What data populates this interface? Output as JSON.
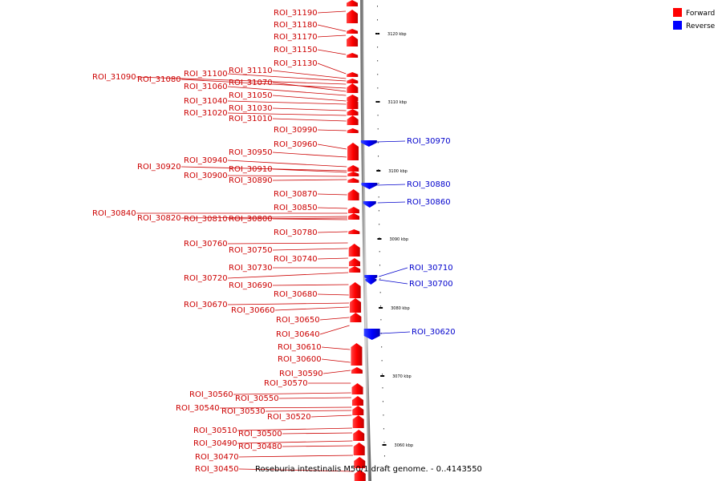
{
  "caption": "Roseburia intestinalis M50/1 draft genome. - 0..4143550",
  "legend": [
    {
      "label": "Forward",
      "color": "#ff0000"
    },
    {
      "label": "Reverse",
      "color": "#0000ff"
    }
  ],
  "kbp_ticks": [
    "3120 kbp",
    "3110 kbp",
    "3100 kbp",
    "3090 kbp",
    "3080 kbp",
    "3070 kbp",
    "3060 kbp"
  ],
  "labels": {
    "roi_31190": "ROI_31190",
    "roi_31180": "ROI_31180",
    "roi_31170": "ROI_31170",
    "roi_31150": "ROI_31150",
    "roi_31130": "ROI_31130",
    "roi_31110": "ROI_31110",
    "roi_31100": "ROI_31100",
    "roi_31090": "ROI_31090",
    "roi_31080": "ROI_31080",
    "roi_31070": "ROI_31070",
    "roi_31060": "ROI_31060",
    "roi_31050": "ROI_31050",
    "roi_31040": "ROI_31040",
    "roi_31030": "ROI_31030",
    "roi_31020": "ROI_31020",
    "roi_31010": "ROI_31010",
    "roi_30990": "ROI_30990",
    "roi_30970": "ROI_30970",
    "roi_30960": "ROI_30960",
    "roi_30950": "ROI_30950",
    "roi_30940": "ROI_30940",
    "roi_30920": "ROI_30920",
    "roi_30910": "ROI_30910",
    "roi_30900": "ROI_30900",
    "roi_30890": "ROI_30890",
    "roi_30880": "ROI_30880",
    "roi_30870": "ROI_30870",
    "roi_30860": "ROI_30860",
    "roi_30850": "ROI_30850",
    "roi_30840": "ROI_30840",
    "roi_30820": "ROI_30820",
    "roi_30810": "ROI_30810",
    "roi_30800": "ROI_30800",
    "roi_30780": "ROI_30780",
    "roi_30760": "ROI_30760",
    "roi_30750": "ROI_30750",
    "roi_30740": "ROI_30740",
    "roi_30730": "ROI_30730",
    "roi_30720": "ROI_30720",
    "roi_30710": "ROI_30710",
    "roi_30700": "ROI_30700",
    "roi_30690": "ROI_30690",
    "roi_30680": "ROI_30680",
    "roi_30670": "ROI_30670",
    "roi_30660": "ROI_30660",
    "roi_30650": "ROI_30650",
    "roi_30640": "ROI_30640",
    "roi_30620": "ROI_30620",
    "roi_30610": "ROI_30610",
    "roi_30600": "ROI_30600",
    "roi_30590": "ROI_30590",
    "roi_30570": "ROI_30570",
    "roi_30560": "ROI_30560",
    "roi_30550": "ROI_30550",
    "roi_30540": "ROI_30540",
    "roi_30530": "ROI_30530",
    "roi_30520": "ROI_30520",
    "roi_30510": "ROI_30510",
    "roi_30500": "ROI_30500",
    "roi_30490": "ROI_30490",
    "roi_30480": "ROI_30480",
    "roi_30470": "ROI_30470",
    "roi_30450": "ROI_30450"
  }
}
